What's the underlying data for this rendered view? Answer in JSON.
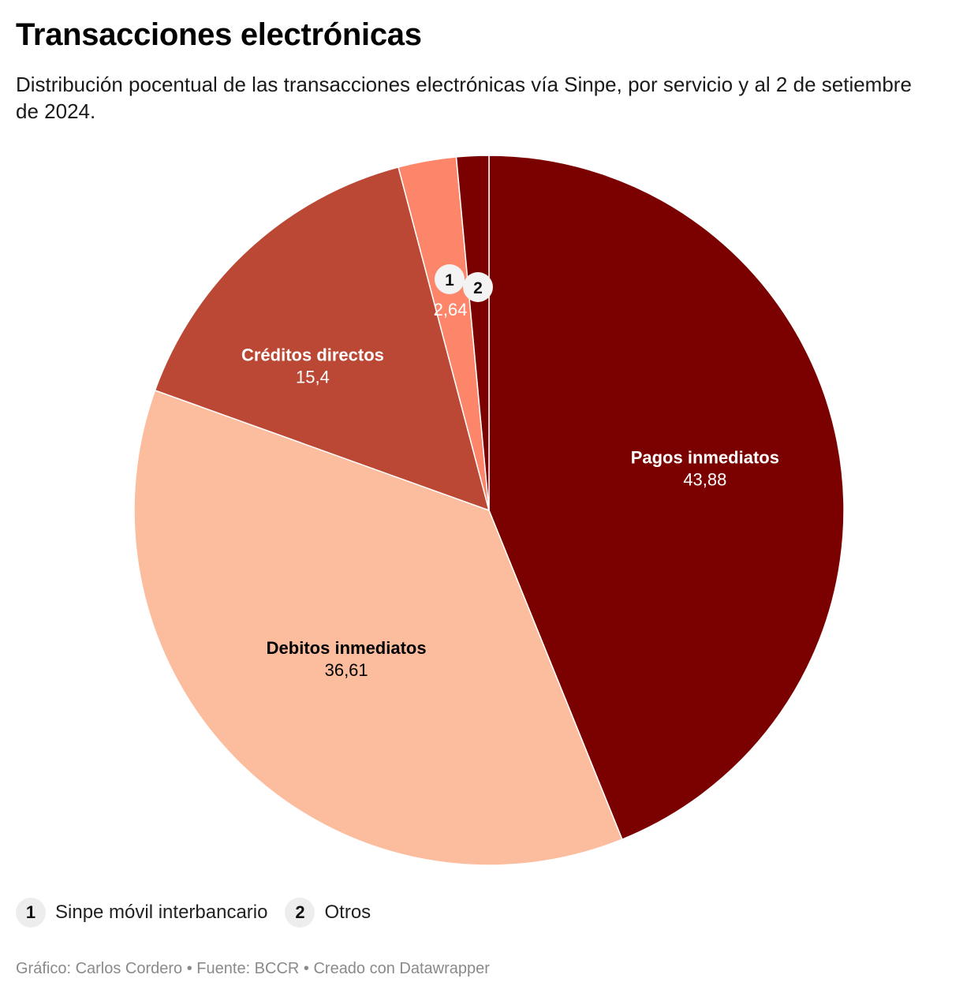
{
  "header": {
    "title": "Transacciones electrónicas",
    "subtitle": "Distribución pocentual de las transacciones electrónicas vía Sinpe, por servicio y al 2 de setiembre de 2024."
  },
  "chart_data": {
    "type": "pie",
    "slices": [
      {
        "label": "Pagos inmediatos",
        "value": 43.88,
        "value_label": "43,88",
        "color": "#7b0000",
        "text_color": "#ffffff",
        "marker": ""
      },
      {
        "label": "Debitos inmediatos",
        "value": 36.61,
        "value_label": "36,61",
        "color": "#fcbc9e",
        "text_color": "#000000",
        "marker": ""
      },
      {
        "label": "Créditos directos",
        "value": 15.4,
        "value_label": "15,4",
        "color": "#bb4834",
        "text_color": "#ffffff",
        "marker": ""
      },
      {
        "label": "Sinpe móvil interbancario",
        "value": 2.64,
        "value_label": "2,64",
        "color": "#fd866a",
        "text_color": "#ffffff",
        "marker": "1"
      },
      {
        "label": "Otros",
        "value": 1.47,
        "value_label": "",
        "color": "#7b0000",
        "text_color": "#ffffff",
        "marker": "2"
      }
    ]
  },
  "legend": [
    {
      "marker": "1",
      "label": "Sinpe móvil interbancario"
    },
    {
      "marker": "2",
      "label": "Otros"
    }
  ],
  "footer": {
    "credit": "Gráfico: Carlos Cordero • Fuente: BCCR • Creado con Datawrapper"
  }
}
